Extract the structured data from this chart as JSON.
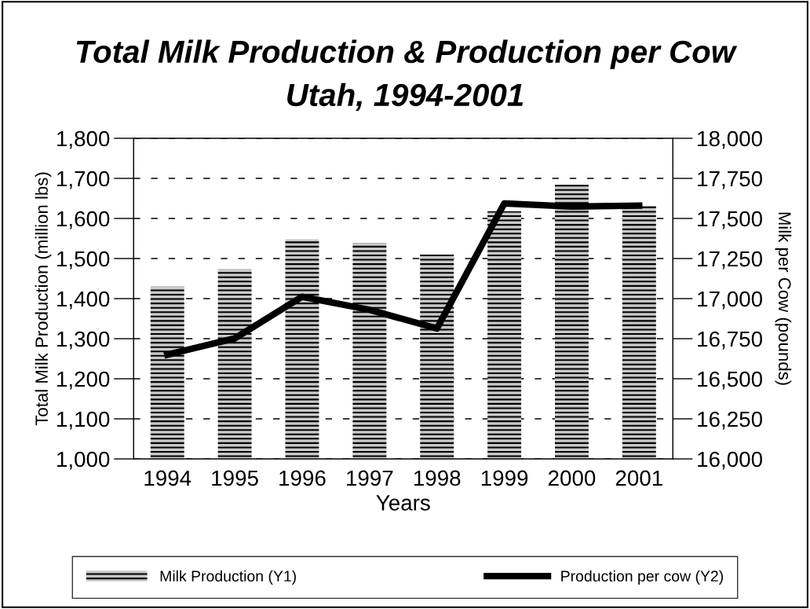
{
  "chart_data": {
    "type": "bar",
    "title": "Total Milk Production & Production per Cow\nUtah, 1994-2001",
    "xlabel": "Years",
    "ylabel": "Total Milk Production (million lbs)",
    "y2label": "Milk per Cow (pounds)",
    "categories": [
      "1994",
      "1995",
      "1996",
      "1997",
      "1998",
      "1999",
      "2000",
      "2001"
    ],
    "series": [
      {
        "name": "Milk Production (Y1)",
        "color": "#c8c8c8",
        "values": [
          1430,
          1473,
          1548,
          1538,
          1510,
          1618,
          1684,
          1632
        ]
      },
      {
        "name": "Production per cow (Y2)",
        "type": "line",
        "axis": "y2",
        "color": "#000000",
        "values": [
          16650,
          16752,
          17012,
          16930,
          16814,
          17594,
          17574,
          17580
        ]
      }
    ],
    "ylim": [
      1000,
      1800
    ],
    "yticks": [
      {
        "value": 1000,
        "label": "1,000"
      },
      {
        "value": 1100,
        "label": "1,100"
      },
      {
        "value": 1200,
        "label": "1,200"
      },
      {
        "value": 1300,
        "label": "1,300"
      },
      {
        "value": 1400,
        "label": "1,400"
      },
      {
        "value": 1500,
        "label": "1,500"
      },
      {
        "value": 1600,
        "label": "1,600"
      },
      {
        "value": 1700,
        "label": "1,700"
      },
      {
        "value": 1800,
        "label": "1,800"
      }
    ],
    "y2lim": [
      16000,
      18000
    ],
    "y2ticks": [
      {
        "value": 16000,
        "label": "16,000"
      },
      {
        "value": 16250,
        "label": "16,250"
      },
      {
        "value": 16500,
        "label": "16,500"
      },
      {
        "value": 16750,
        "label": "16,750"
      },
      {
        "value": 17000,
        "label": "17,000"
      },
      {
        "value": 17250,
        "label": "17,250"
      },
      {
        "value": 17500,
        "label": "17,500"
      },
      {
        "value": 17750,
        "label": "17,750"
      },
      {
        "value": 18000,
        "label": "18,000"
      }
    ],
    "grid": "y",
    "legend": "bottom",
    "line_style": "solid",
    "marker": "none"
  }
}
